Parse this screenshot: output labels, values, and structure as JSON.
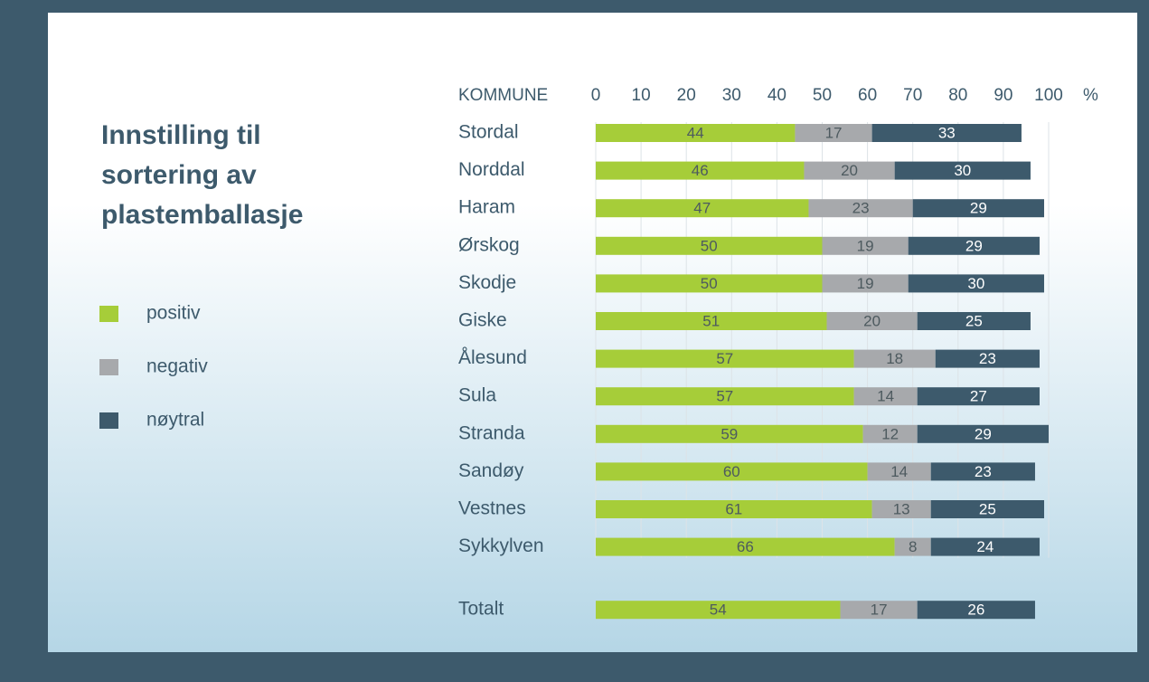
{
  "chart_data": {
    "type": "stacked_bar_horizontal",
    "title": "Innstilling til sortering av plastemballasje",
    "category_header": "KOMMUNE",
    "x_unit_label": "%",
    "categories": [
      "Stordal",
      "Norddal",
      "Haram",
      "Ørskog",
      "Skodje",
      "Giske",
      "Ålesund",
      "Sula",
      "Stranda",
      "Sandøy",
      "Vestnes",
      "Sykkylven",
      "Totalt"
    ],
    "series": [
      {
        "name": "positiv",
        "color": "#a6cd39",
        "values": [
          44,
          46,
          47,
          50,
          50,
          51,
          57,
          57,
          59,
          60,
          61,
          66,
          54
        ]
      },
      {
        "name": "negativ",
        "color": "#a7a9ac",
        "values": [
          17,
          20,
          23,
          19,
          19,
          20,
          18,
          14,
          12,
          14,
          13,
          8,
          17
        ]
      },
      {
        "name": "nøytral",
        "color": "#3d5a6c",
        "values": [
          33,
          30,
          29,
          29,
          30,
          25,
          23,
          27,
          29,
          23,
          25,
          24,
          26
        ]
      }
    ],
    "xlim": [
      0,
      100
    ],
    "xticks": [
      0,
      10,
      20,
      30,
      40,
      50,
      60,
      70,
      80,
      90,
      100
    ],
    "grid": true
  }
}
